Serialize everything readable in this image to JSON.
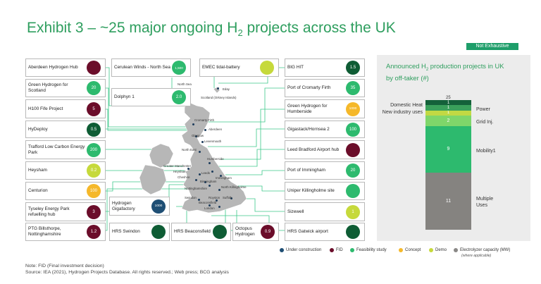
{
  "title": {
    "prefix": "Exhibit 3 – ~25 major ongoing H",
    "sub": "2",
    "suffix": " projects across the UK"
  },
  "badge": "Not Exhaustive",
  "colors": {
    "green": "#2e9e5e",
    "dark_green": "#0e5c34",
    "fid": "#6b0d2a",
    "under_construction": "#1e4e74",
    "feasibility": "#2dba6e",
    "concept": "#f5b82a",
    "demo": "#c6d93b",
    "electrolyzer": "#8a8886"
  },
  "projects": [
    {
      "label": "Aberdeen Hydrogen Hub",
      "value": "",
      "status": "fid"
    },
    {
      "label": "Green Hydrogen for Scotland",
      "value": "20",
      "status": "feasibility"
    },
    {
      "label": "H100 Fife Project",
      "value": "5",
      "status": "fid"
    },
    {
      "label": "HyDeploy",
      "value": "0.5",
      "status": "dark"
    },
    {
      "label": "Trafford Low Carbon Energy Park",
      "value": "200",
      "status": "feasibility"
    },
    {
      "label": "Heysham",
      "value": "0.2",
      "status": "demo"
    },
    {
      "label": "Centurion",
      "value": "100",
      "status": "concept"
    },
    {
      "label": "Tyseley Energy Park refuelling hub",
      "value": "3",
      "status": "fid"
    },
    {
      "label": "PTG Billsthorpe, Nottinghamshire",
      "value": "1.2",
      "status": "fid"
    },
    {
      "label": "Cerulean Winds - North Sea",
      "value": "1,500",
      "status": "feasibility"
    },
    {
      "label": "Dolphyn 1",
      "value": "2.0",
      "status": "feasibility"
    },
    {
      "label": "Hydrogen Gigafactory",
      "value": "1000",
      "status": "under_construction"
    },
    {
      "label": "HRS Swindon",
      "value": "",
      "status": "dark"
    },
    {
      "label": "EMEC tidal-battery",
      "value": "",
      "status": "demo"
    },
    {
      "label": "HRS Beaconsfield",
      "value": "",
      "status": "dark"
    },
    {
      "label": "Octopus Hydrogen",
      "value": "0.9",
      "status": "fid"
    },
    {
      "label": "BIG HIT",
      "value": "1.5",
      "status": "dark"
    },
    {
      "label": "Port of Cromarty Firth",
      "value": "35",
      "status": "feasibility"
    },
    {
      "label": "Green Hydrogen for Humberside",
      "value": "1000",
      "status": "concept"
    },
    {
      "label": "Gigastack/Hornsea 2",
      "value": "100",
      "status": "feasibility"
    },
    {
      "label": "Leed Bradford Airport hub",
      "value": "",
      "status": "fid"
    },
    {
      "label": "Port of Immingham",
      "value": "20",
      "status": "feasibility"
    },
    {
      "label": "Uniper Killingholme site",
      "value": "",
      "status": "feasibility"
    },
    {
      "label": "Sizewell",
      "value": "1",
      "status": "demo"
    },
    {
      "label": "HRS Gatwick airport",
      "value": "",
      "status": "dark"
    }
  ],
  "map_labels": [
    "North Sea",
    "Eday",
    "Scotland (Orkney Islands)",
    "Cromarty Firth",
    "Aberdeen",
    "Glasgow",
    "Levenmouth",
    "North East",
    "Humberside",
    "Greater Manchester",
    "Heysham",
    "Leeds",
    "Cheshire",
    "Immingham",
    "Birmingham",
    "Nottinghamshire",
    "North Killingholme",
    "Swindon",
    "Royston",
    "Suffolk",
    "Beaconsfield",
    "London"
  ],
  "chart_data": {
    "type": "bar",
    "title_prefix": "Announced H",
    "title_sub": "2",
    "title_suffix": " production projects in UK by off-taker (#)",
    "total": "25",
    "categories": [
      "Multiple Uses",
      "Mobility1",
      "Grid Inj.",
      "Power",
      "New industry uses",
      "Domestic Heat"
    ],
    "values": [
      11,
      9,
      2,
      1,
      1,
      1
    ],
    "colors": [
      "#858380",
      "#2dba6e",
      "#7fd66a",
      "#c2d944",
      "#3aa05b",
      "#14613a"
    ]
  },
  "legend": [
    {
      "label": "Under construction",
      "color": "#1e4e74"
    },
    {
      "label": "FID",
      "color": "#6b0d2a"
    },
    {
      "label": "Feasibility study",
      "color": "#2dba6e"
    },
    {
      "label": "Concept",
      "color": "#f5b82a"
    },
    {
      "label": "Demo",
      "color": "#c6d93b"
    },
    {
      "label": "Electrolyzer capacity (MW)",
      "color": "#8a8886"
    }
  ],
  "legend_sub": "(where applicable)",
  "footnotes": [
    "Note: FID (Final investment decision)",
    "Source: IEA (2021), Hydrogen Projects Database. All rights reserved.; Web press; BCG analysis"
  ]
}
